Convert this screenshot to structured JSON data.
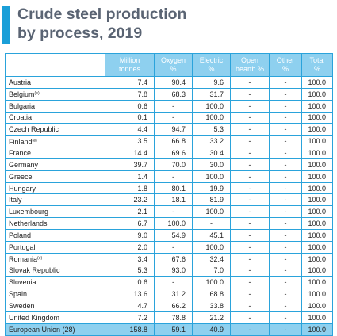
{
  "title_line1": "Crude steel production",
  "title_line2": "by process, 2019",
  "accent_color": "#1a9fd8",
  "header_color": "#8ed0ef",
  "columns": [
    {
      "line1": "Million",
      "line2": "tonnes"
    },
    {
      "line1": "Oxygen",
      "line2": "%"
    },
    {
      "line1": "Electric",
      "line2": "%"
    },
    {
      "line1": "Open",
      "line2": "hearth %"
    },
    {
      "line1": "Other",
      "line2": "%"
    },
    {
      "line1": "Total",
      "line2": "%"
    }
  ],
  "rows": [
    {
      "country": "Austria",
      "note": "",
      "values": [
        "7.4",
        "90.4",
        "9.6",
        "-",
        "-",
        "100.0"
      ]
    },
    {
      "country": "Belgium",
      "note": "(e)",
      "values": [
        "7.8",
        "68.3",
        "31.7",
        "-",
        "-",
        "100.0"
      ]
    },
    {
      "country": "Bulgaria",
      "note": "",
      "values": [
        "0.6",
        "-",
        "100.0",
        "-",
        "-",
        "100.0"
      ]
    },
    {
      "country": "Croatia",
      "note": "",
      "values": [
        "0.1",
        "-",
        "100.0",
        "-",
        "-",
        "100.0"
      ]
    },
    {
      "country": "Czech Republic",
      "note": "",
      "values": [
        "4.4",
        "94.7",
        "5.3",
        "-",
        "-",
        "100.0"
      ]
    },
    {
      "country": "Finland",
      "note": "(e)",
      "values": [
        "3.5",
        "66.8",
        "33.2",
        "-",
        "-",
        "100.0"
      ]
    },
    {
      "country": "France",
      "note": "",
      "values": [
        "14.4",
        "69.6",
        "30.4",
        "-",
        "-",
        "100.0"
      ]
    },
    {
      "country": "Germany",
      "note": "",
      "values": [
        "39.7",
        "70.0",
        "30.0",
        "-",
        "-",
        "100.0"
      ]
    },
    {
      "country": "Greece",
      "note": "",
      "values": [
        "1.4",
        "-",
        "100.0",
        "-",
        "-",
        "100.0"
      ]
    },
    {
      "country": "Hungary",
      "note": "",
      "values": [
        "1.8",
        "80.1",
        "19.9",
        "-",
        "-",
        "100.0"
      ]
    },
    {
      "country": "Italy",
      "note": "",
      "values": [
        "23.2",
        "18.1",
        "81.9",
        "-",
        "-",
        "100.0"
      ]
    },
    {
      "country": "Luxembourg",
      "note": "",
      "values": [
        "2.1",
        "-",
        "100.0",
        "-",
        "-",
        "100.0"
      ]
    },
    {
      "country": "Netherlands",
      "note": "",
      "values": [
        "6.7",
        "100.0",
        "-",
        "-",
        "-",
        "100.0"
      ]
    },
    {
      "country": "Poland",
      "note": "",
      "values": [
        "9.0",
        "54.9",
        "45.1",
        "-",
        "-",
        "100.0"
      ]
    },
    {
      "country": "Portugal",
      "note": "",
      "values": [
        "2.0",
        "-",
        "100.0",
        "-",
        "-",
        "100.0"
      ]
    },
    {
      "country": "Romania",
      "note": "(e)",
      "values": [
        "3.4",
        "67.6",
        "32.4",
        "-",
        "-",
        "100.0"
      ]
    },
    {
      "country": "Slovak Republic",
      "note": "",
      "values": [
        "5.3",
        "93.0",
        "7.0",
        "-",
        "-",
        "100.0"
      ]
    },
    {
      "country": "Slovenia",
      "note": "",
      "values": [
        "0.6",
        "-",
        "100.0",
        "-",
        "-",
        "100.0"
      ]
    },
    {
      "country": "Spain",
      "note": "",
      "values": [
        "13.6",
        "31.2",
        "68.8",
        "-",
        "-",
        "100.0"
      ]
    },
    {
      "country": "Sweden",
      "note": "",
      "values": [
        "4.7",
        "66.2",
        "33.8",
        "-",
        "-",
        "100.0"
      ]
    },
    {
      "country": "United Kingdom",
      "note": "",
      "values": [
        "7.2",
        "78.8",
        "21.2",
        "-",
        "-",
        "100.0"
      ]
    }
  ],
  "total": {
    "country": "European Union (28)",
    "values": [
      "158.8",
      "59.1",
      "40.9",
      "-",
      "-",
      "100.0"
    ]
  }
}
